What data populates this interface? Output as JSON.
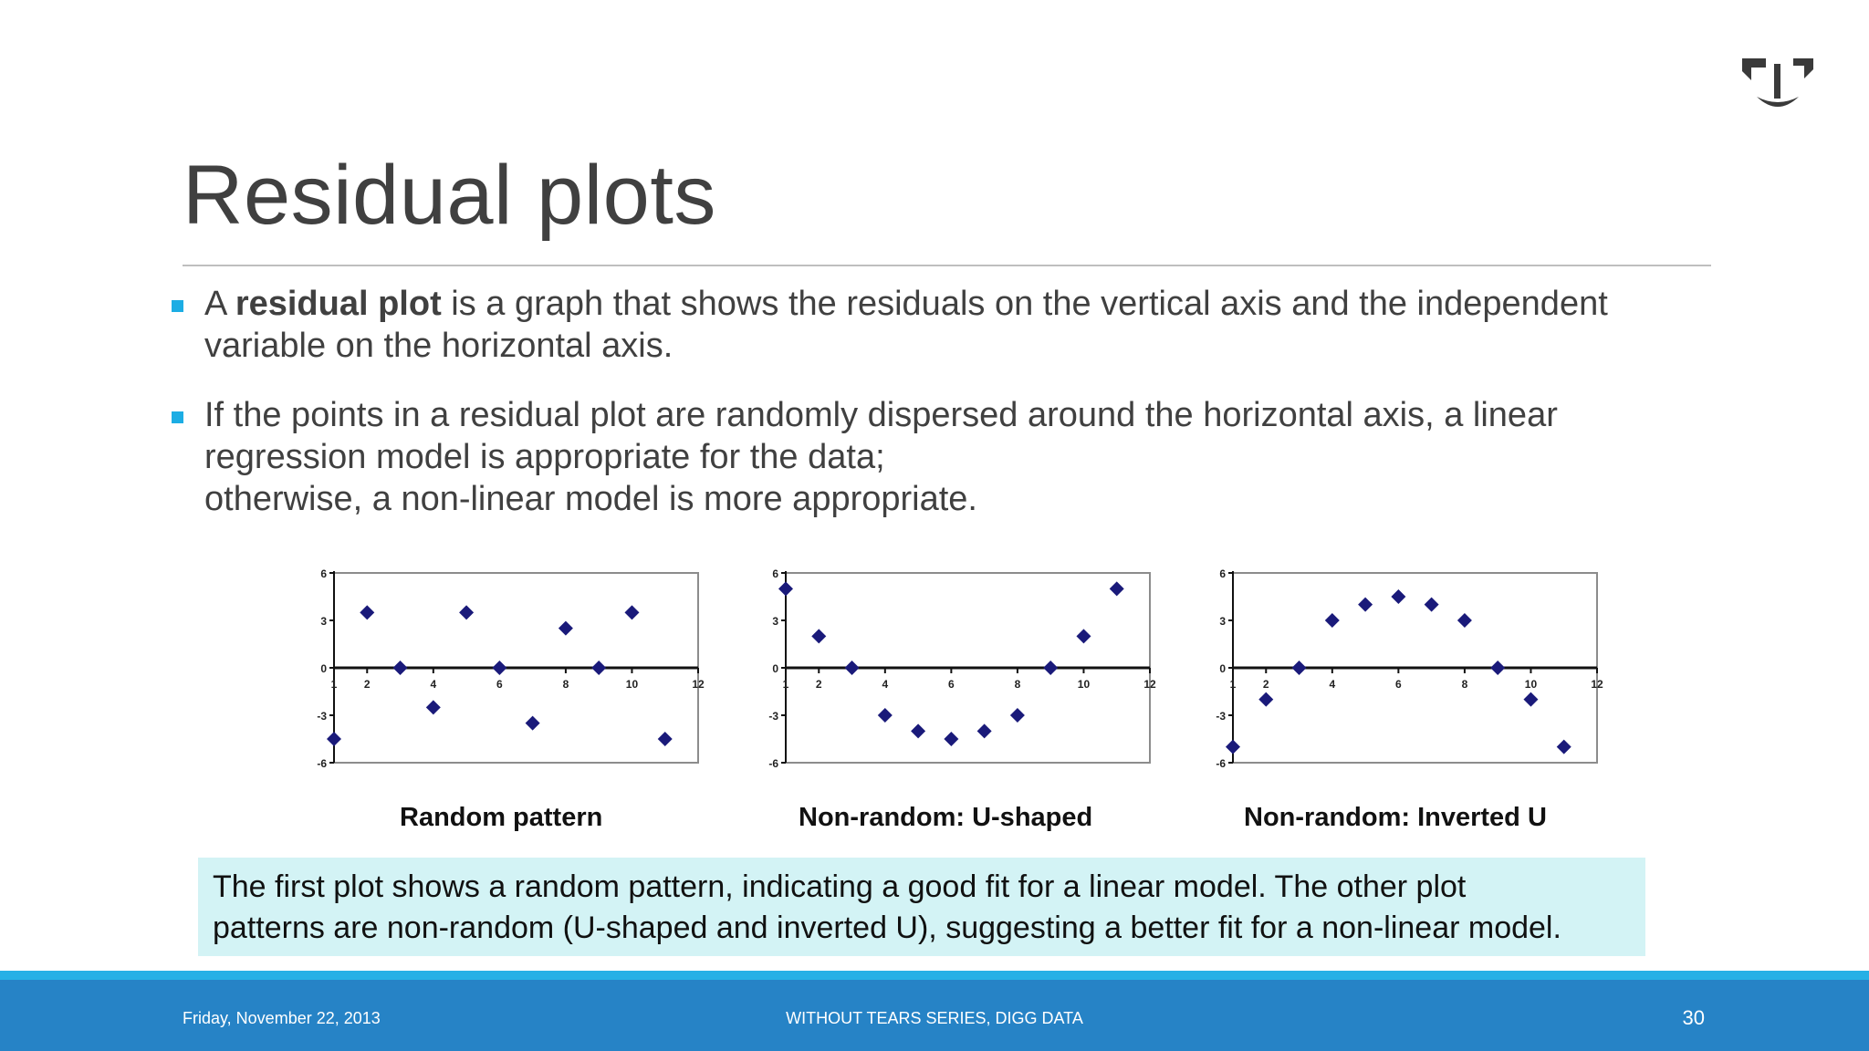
{
  "slide": {
    "title": "Residual plots",
    "bullets": [
      {
        "lines": [
          {
            "prefix": "A ",
            "bold": "residual plot",
            "rest": " is a graph that shows the residuals on the vertical axis and the independent"
          },
          {
            "text": "variable on the horizontal axis."
          }
        ]
      },
      {
        "lines": [
          {
            "text": "If the points in a residual plot are randomly dispersed around the horizontal axis, a linear"
          },
          {
            "text": "regression model is appropriate for the data;"
          },
          {
            "text": "otherwise, a non-linear model is more appropriate."
          }
        ]
      }
    ],
    "callout": {
      "lines": [
        "The first plot shows a random pattern, indicating a good fit for a linear model. The other plot",
        "patterns are non-random (U-shaped and inverted U), suggesting a better fit for a non-linear model."
      ]
    },
    "colors": {
      "bullet": "#1cade4",
      "footer": "#2683c6",
      "footer_strip": "#27b0e6",
      "callout_bg": "#d3f3f5",
      "marker": "#1a1a7a"
    }
  },
  "footer": {
    "date": "Friday, November 22, 2013",
    "series": "WITHOUT TEARS SERIES, DIGG DATA",
    "page": "30"
  },
  "chart_data": [
    {
      "type": "scatter",
      "title": "Random pattern",
      "x": [
        1,
        2,
        3,
        4,
        5,
        6,
        7,
        8,
        9,
        10,
        11
      ],
      "y": [
        -4.5,
        3.5,
        0,
        -2.5,
        3.5,
        0,
        -3.5,
        2.5,
        0,
        3.5,
        -4.5
      ],
      "xlim": [
        1,
        12
      ],
      "ylim": [
        -6,
        6
      ],
      "x_ticks": [
        "1",
        "2",
        "4",
        "6",
        "8",
        "10",
        "12"
      ],
      "y_ticks": [
        "6",
        "3",
        "0",
        "-3",
        "-6"
      ]
    },
    {
      "type": "scatter",
      "title": "Non-random: U-shaped",
      "x": [
        1,
        2,
        3,
        4,
        5,
        6,
        7,
        8,
        9,
        10,
        11
      ],
      "y": [
        5,
        2,
        0,
        -3,
        -4,
        -4.5,
        -4,
        -3,
        0,
        2,
        5
      ],
      "xlim": [
        1,
        12
      ],
      "ylim": [
        -6,
        6
      ],
      "x_ticks": [
        "1",
        "2",
        "4",
        "6",
        "8",
        "10",
        "12"
      ],
      "y_ticks": [
        "6",
        "3",
        "0",
        "-3",
        "-6"
      ]
    },
    {
      "type": "scatter",
      "title": "Non-random: Inverted U",
      "x": [
        1,
        2,
        3,
        4,
        5,
        6,
        7,
        8,
        9,
        10,
        11
      ],
      "y": [
        -5,
        -2,
        0,
        3,
        4,
        4.5,
        4,
        3,
        0,
        -2,
        -5
      ],
      "xlim": [
        1,
        12
      ],
      "ylim": [
        -6,
        6
      ],
      "x_ticks": [
        "1",
        "2",
        "4",
        "6",
        "8",
        "10",
        "12"
      ],
      "y_ticks": [
        "6",
        "3",
        "0",
        "-3",
        "-6"
      ]
    }
  ]
}
